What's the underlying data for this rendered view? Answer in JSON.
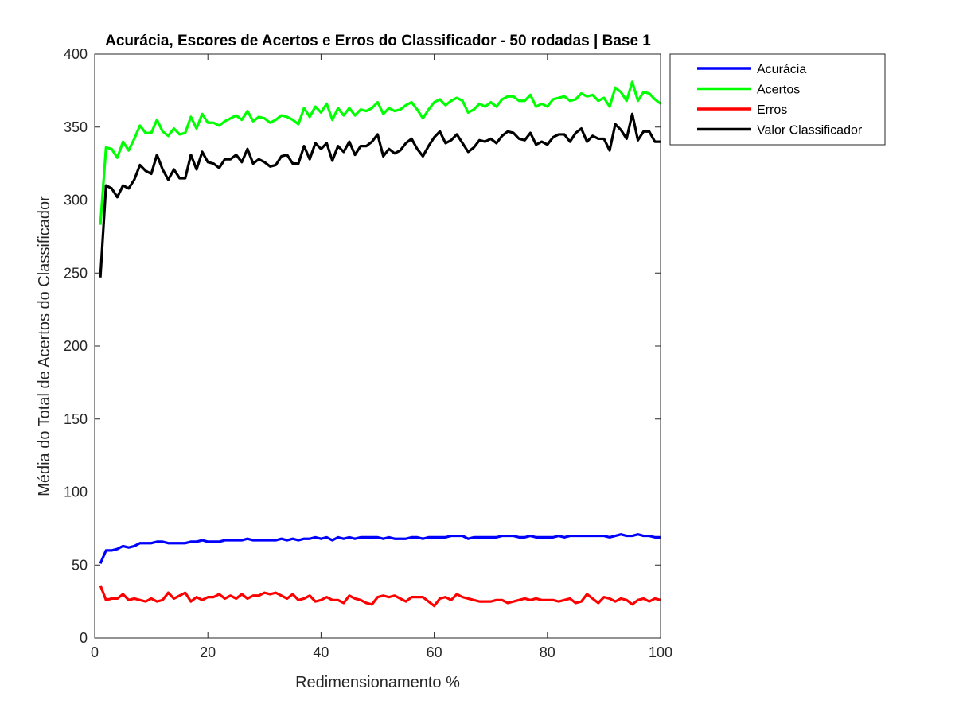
{
  "chart_data": {
    "type": "line",
    "title": "Acurácia, Escores de Acertos e Erros do Classificador - 50 rodadas | Base 1",
    "xlabel": "Redimensionamento %",
    "ylabel": "Média do Total de Acertos do Classificador",
    "xlim": [
      0,
      100
    ],
    "ylim": [
      0,
      400
    ],
    "xticks": [
      0,
      20,
      40,
      60,
      80,
      100
    ],
    "yticks": [
      0,
      50,
      100,
      150,
      200,
      250,
      300,
      350,
      400
    ],
    "grid": false,
    "legend_position": "outside-top-right",
    "series": [
      {
        "name": "Acurácia",
        "color": "#0000ff",
        "x": [
          1,
          2,
          3,
          4,
          5,
          6,
          7,
          8,
          9,
          10,
          11,
          12,
          13,
          14,
          15,
          16,
          17,
          18,
          19,
          20,
          21,
          22,
          23,
          24,
          25,
          26,
          27,
          28,
          29,
          30,
          31,
          32,
          33,
          34,
          35,
          36,
          37,
          38,
          39,
          40,
          41,
          42,
          43,
          44,
          45,
          46,
          47,
          48,
          49,
          50,
          51,
          52,
          53,
          54,
          55,
          56,
          57,
          58,
          59,
          60,
          61,
          62,
          63,
          64,
          65,
          66,
          67,
          68,
          69,
          70,
          71,
          72,
          73,
          74,
          75,
          76,
          77,
          78,
          79,
          80,
          81,
          82,
          83,
          84,
          85,
          86,
          87,
          88,
          89,
          90,
          91,
          92,
          93,
          94,
          95,
          96,
          97,
          98,
          99,
          100
        ],
        "values": [
          51,
          60,
          60,
          61,
          63,
          62,
          63,
          65,
          65,
          65,
          66,
          66,
          65,
          65,
          65,
          65,
          66,
          66,
          67,
          66,
          66,
          66,
          67,
          67,
          67,
          67,
          68,
          67,
          67,
          67,
          67,
          67,
          68,
          67,
          68,
          67,
          68,
          68,
          69,
          68,
          69,
          67,
          69,
          68,
          69,
          68,
          69,
          69,
          69,
          69,
          68,
          69,
          68,
          68,
          68,
          69,
          69,
          68,
          69,
          69,
          69,
          69,
          70,
          70,
          70,
          68,
          69,
          69,
          69,
          69,
          69,
          70,
          70,
          70,
          69,
          69,
          70,
          69,
          69,
          69,
          69,
          70,
          69,
          70,
          70,
          70,
          70,
          70,
          70,
          70,
          69,
          70,
          71,
          70,
          70,
          71,
          70,
          70,
          69,
          69
        ]
      },
      {
        "name": "Acertos",
        "color": "#00ff00",
        "x": [
          1,
          2,
          3,
          4,
          5,
          6,
          7,
          8,
          9,
          10,
          11,
          12,
          13,
          14,
          15,
          16,
          17,
          18,
          19,
          20,
          21,
          22,
          23,
          24,
          25,
          26,
          27,
          28,
          29,
          30,
          31,
          32,
          33,
          34,
          35,
          36,
          37,
          38,
          39,
          40,
          41,
          42,
          43,
          44,
          45,
          46,
          47,
          48,
          49,
          50,
          51,
          52,
          53,
          54,
          55,
          56,
          57,
          58,
          59,
          60,
          61,
          62,
          63,
          64,
          65,
          66,
          67,
          68,
          69,
          70,
          71,
          72,
          73,
          74,
          75,
          76,
          77,
          78,
          79,
          80,
          81,
          82,
          83,
          84,
          85,
          86,
          87,
          88,
          89,
          90,
          91,
          92,
          93,
          94,
          95,
          96,
          97,
          98,
          99,
          100
        ],
        "values": [
          283,
          336,
          335,
          329,
          340,
          334,
          342,
          351,
          346,
          346,
          355,
          347,
          344,
          349,
          345,
          346,
          357,
          349,
          359,
          353,
          353,
          351,
          354,
          356,
          358,
          355,
          361,
          354,
          357,
          356,
          353,
          355,
          358,
          357,
          355,
          352,
          363,
          357,
          364,
          360,
          366,
          355,
          363,
          358,
          363,
          358,
          362,
          361,
          363,
          367,
          359,
          363,
          361,
          362,
          365,
          367,
          362,
          356,
          362,
          367,
          369,
          365,
          368,
          370,
          368,
          360,
          362,
          366,
          364,
          367,
          364,
          369,
          371,
          371,
          368,
          368,
          372,
          364,
          366,
          364,
          369,
          370,
          371,
          368,
          369,
          373,
          371,
          372,
          368,
          370,
          364,
          377,
          374,
          368,
          381,
          368,
          374,
          373,
          369,
          366
        ]
      },
      {
        "name": "Erros",
        "color": "#ff0000",
        "x": [
          1,
          2,
          3,
          4,
          5,
          6,
          7,
          8,
          9,
          10,
          11,
          12,
          13,
          14,
          15,
          16,
          17,
          18,
          19,
          20,
          21,
          22,
          23,
          24,
          25,
          26,
          27,
          28,
          29,
          30,
          31,
          32,
          33,
          34,
          35,
          36,
          37,
          38,
          39,
          40,
          41,
          42,
          43,
          44,
          45,
          46,
          47,
          48,
          49,
          50,
          51,
          52,
          53,
          54,
          55,
          56,
          57,
          58,
          59,
          60,
          61,
          62,
          63,
          64,
          65,
          66,
          67,
          68,
          69,
          70,
          71,
          72,
          73,
          74,
          75,
          76,
          77,
          78,
          79,
          80,
          81,
          82,
          83,
          84,
          85,
          86,
          87,
          88,
          89,
          90,
          91,
          92,
          93,
          94,
          95,
          96,
          97,
          98,
          99,
          100
        ],
        "values": [
          36,
          26,
          27,
          27,
          30,
          26,
          27,
          26,
          25,
          27,
          25,
          26,
          31,
          27,
          29,
          31,
          25,
          28,
          26,
          28,
          28,
          30,
          27,
          29,
          27,
          30,
          27,
          29,
          29,
          31,
          30,
          31,
          29,
          27,
          30,
          26,
          27,
          29,
          25,
          26,
          28,
          26,
          26,
          24,
          29,
          27,
          26,
          24,
          23,
          28,
          29,
          28,
          29,
          27,
          25,
          28,
          28,
          28,
          25,
          22,
          27,
          28,
          26,
          30,
          28,
          27,
          26,
          25,
          25,
          25,
          26,
          26,
          24,
          25,
          26,
          27,
          26,
          27,
          26,
          26,
          26,
          25,
          26,
          27,
          24,
          25,
          30,
          27,
          24,
          28,
          27,
          25,
          27,
          26,
          23,
          26,
          27,
          25,
          27,
          26
        ]
      },
      {
        "name": "Valor Classificador",
        "color": "#000000",
        "x": [
          1,
          2,
          3,
          4,
          5,
          6,
          7,
          8,
          9,
          10,
          11,
          12,
          13,
          14,
          15,
          16,
          17,
          18,
          19,
          20,
          21,
          22,
          23,
          24,
          25,
          26,
          27,
          28,
          29,
          30,
          31,
          32,
          33,
          34,
          35,
          36,
          37,
          38,
          39,
          40,
          41,
          42,
          43,
          44,
          45,
          46,
          47,
          48,
          49,
          50,
          51,
          52,
          53,
          54,
          55,
          56,
          57,
          58,
          59,
          60,
          61,
          62,
          63,
          64,
          65,
          66,
          67,
          68,
          69,
          70,
          71,
          72,
          73,
          74,
          75,
          76,
          77,
          78,
          79,
          80,
          81,
          82,
          83,
          84,
          85,
          86,
          87,
          88,
          89,
          90,
          91,
          92,
          93,
          94,
          95,
          96,
          97,
          98,
          99,
          100
        ],
        "values": [
          247,
          310,
          308,
          302,
          310,
          308,
          314,
          324,
          320,
          318,
          331,
          321,
          314,
          321,
          315,
          315,
          331,
          321,
          333,
          326,
          325,
          322,
          328,
          328,
          331,
          326,
          335,
          325,
          328,
          326,
          323,
          324,
          330,
          331,
          325,
          325,
          337,
          328,
          339,
          335,
          339,
          327,
          337,
          333,
          340,
          331,
          337,
          337,
          340,
          345,
          330,
          335,
          332,
          334,
          339,
          342,
          335,
          330,
          337,
          343,
          347,
          339,
          341,
          345,
          339,
          333,
          336,
          341,
          340,
          342,
          339,
          344,
          347,
          346,
          342,
          341,
          346,
          338,
          340,
          338,
          343,
          345,
          345,
          340,
          346,
          349,
          340,
          344,
          342,
          342,
          334,
          352,
          348,
          342,
          359,
          341,
          347,
          347,
          340,
          340
        ]
      }
    ]
  }
}
